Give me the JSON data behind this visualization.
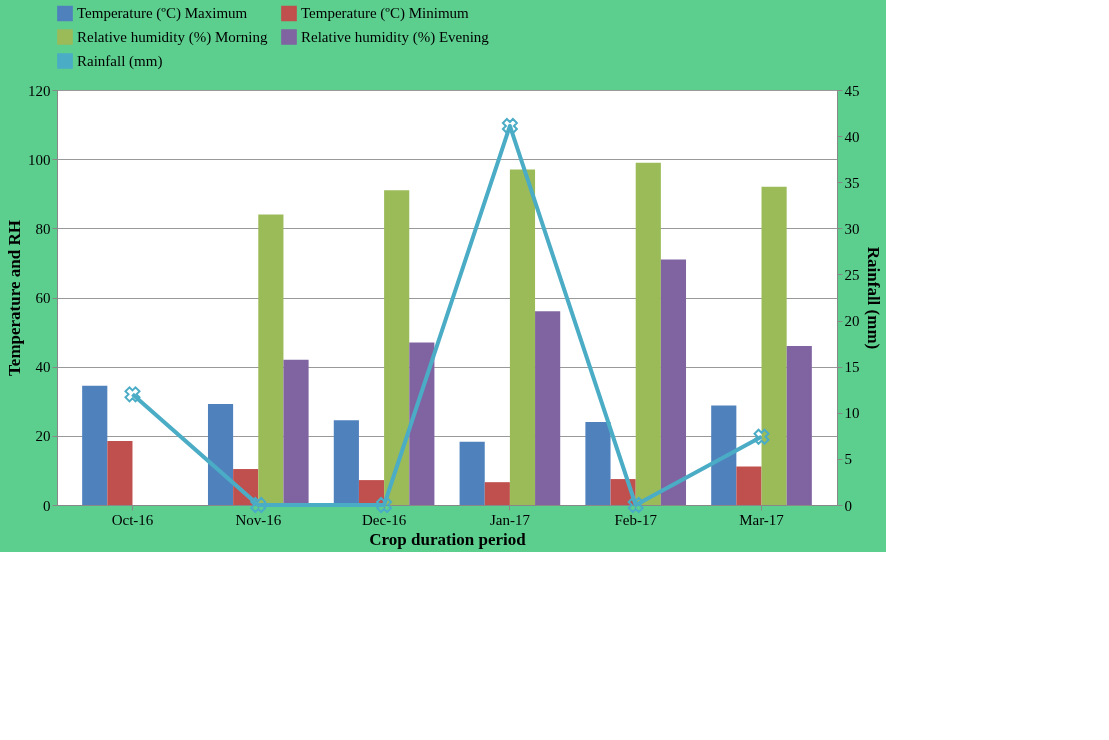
{
  "chart_data": {
    "type": "bar",
    "xlabel": "Crop duration period",
    "ylabel": "Temperature and RH",
    "y2label": "Rainfall (mm)",
    "categories": [
      "Oct-16",
      "Nov-16",
      "Dec-16",
      "Jan-17",
      "Feb-17",
      "Mar-17"
    ],
    "series": [
      {
        "name": "Temperature (ºC) Maximum",
        "color": "#4f81bd",
        "values": [
          34.5,
          29.2,
          24.5,
          18.3,
          24.0,
          28.8
        ]
      },
      {
        "name": "Temperature (ºC) Minimum",
        "color": "#c0504d",
        "values": [
          18.5,
          10.4,
          7.2,
          6.6,
          7.5,
          11.1
        ]
      },
      {
        "name": "Relative humidity (%) Morning",
        "color": "#9bbb59",
        "values": [
          null,
          84,
          91,
          97,
          99,
          92
        ]
      },
      {
        "name": "Relative humidity (%) Evening",
        "color": "#8064a2",
        "values": [
          null,
          42,
          47,
          56,
          71,
          46
        ]
      },
      {
        "name": "Rainfall (mm)",
        "color": "#4bacc6",
        "type": "line",
        "axis": "y2",
        "marker": "cross",
        "values": [
          12.0,
          0,
          0,
          41.1,
          0,
          7.4
        ]
      }
    ],
    "ylim": [
      0,
      120
    ],
    "yticks": [
      0,
      20,
      40,
      60,
      80,
      100,
      120
    ],
    "y2lim": [
      0,
      45
    ],
    "y2ticks": [
      0,
      5,
      10,
      15,
      20,
      25,
      30,
      35,
      40,
      45
    ],
    "grid": "y",
    "legend": "top"
  }
}
